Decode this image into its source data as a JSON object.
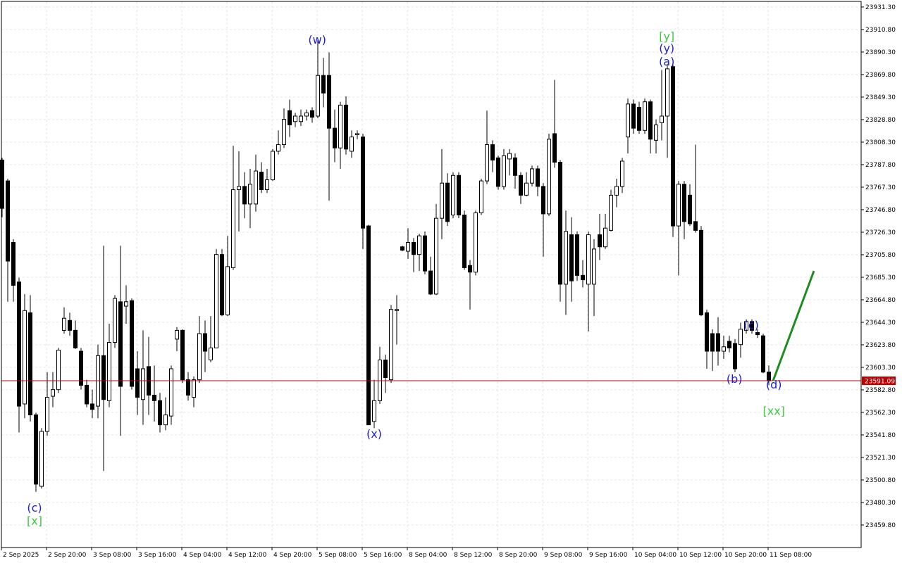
{
  "chart_data": {
    "type": "candlestick",
    "categories": [
      "2 Sep 2025",
      null,
      null,
      null,
      null,
      null,
      null,
      null,
      "2 Sep 20:00",
      null,
      null,
      null,
      null,
      null,
      null,
      null,
      "3 Sep 08:00",
      null,
      null,
      null,
      null,
      null,
      null,
      null,
      "3 Sep 16:00",
      null,
      null,
      null,
      null,
      null,
      null,
      null,
      "4 Sep 04:00",
      null,
      null,
      null,
      null,
      null,
      null,
      null,
      "4 Sep 12:00",
      null,
      null,
      null,
      null,
      null,
      null,
      null,
      "4 Sep 20:00",
      null,
      null,
      null,
      null,
      null,
      null,
      null,
      "5 Sep 08:00",
      null,
      null,
      null,
      null,
      null,
      null,
      null,
      "5 Sep 16:00",
      null,
      null,
      null,
      null,
      null,
      null,
      null,
      "8 Sep 04:00",
      null,
      null,
      null,
      null,
      null,
      null,
      null,
      "8 Sep 12:00",
      null,
      null,
      null,
      null,
      null,
      null,
      null,
      "8 Sep 20:00",
      null,
      null,
      null,
      null,
      null,
      null,
      null,
      "9 Sep 08:00",
      null,
      null,
      null,
      null,
      null,
      null,
      null,
      "9 Sep 16:00",
      null,
      null,
      null,
      null,
      null,
      null,
      null,
      "10 Sep 04:00",
      null,
      null,
      null,
      null,
      null,
      null,
      null,
      "10 Sep 12:00",
      null,
      null,
      null,
      null,
      null,
      null,
      null,
      "10 Sep 20:00",
      null,
      null,
      null,
      null,
      null,
      null,
      null,
      "11 Sep 08:00"
    ],
    "open": [
      23792,
      23773,
      23717,
      23681,
      23570,
      23653,
      23560,
      23495,
      23545,
      23577,
      23583,
      23637,
      23646,
      23637,
      23618,
      23587,
      23570,
      23568,
      23614,
      23573,
      23626,
      23663,
      23659,
      23664,
      23602,
      23574,
      23604,
      23578,
      23573,
      23551,
      23559,
      23629,
      23637,
      23592,
      23576,
      23592,
      23634,
      23610,
      23621,
      23706,
      23651,
      23694,
      23765,
      23768,
      23752,
      23752,
      23781,
      23765,
      23774,
      23800,
      23806,
      23837,
      23827,
      23827,
      23832,
      23837,
      23832,
      23869,
      23869,
      23821,
      23803,
      23842,
      23800,
      23815,
      23813,
      23732,
      23554,
      23573,
      23610,
      23592,
      23655,
      23713,
      23709,
      23717,
      23706,
      23723,
      23691,
      23670,
      23739,
      23771,
      23742,
      23778,
      23742,
      23696,
      23690,
      23744,
      23773,
      23806,
      23794,
      23768,
      23793,
      23794,
      23778,
      23760,
      23771,
      23784,
      23768,
      23743,
      23816,
      23790,
      23679,
      23724,
      23724,
      23687,
      23679,
      23679,
      23724,
      23713,
      23728,
      23760,
      23768,
      23813,
      23843,
      23840,
      23819,
      23845,
      23810,
      23826,
      23832,
      23877,
      23732,
      23770,
      23760,
      23736,
      23728,
      23653,
      23634,
      23634,
      23618,
      23627,
      23625,
      23624,
      23637,
      23645,
      23635,
      23632,
      23599
    ],
    "high": [
      23794,
      23775,
      23720,
      23685,
      23670,
      23669,
      23562,
      23548,
      23599,
      23599,
      23621,
      23658,
      23653,
      23646,
      23621,
      23592,
      23583,
      23624,
      23714,
      23643,
      23669,
      23714,
      23678,
      23666,
      23618,
      23637,
      23631,
      23605,
      23580,
      23576,
      23605,
      23640,
      23638,
      23599,
      23595,
      23650,
      23646,
      23650,
      23711,
      23711,
      23723,
      23805,
      23800,
      23781,
      23784,
      23797,
      23790,
      23784,
      23802,
      23819,
      23839,
      23847,
      23835,
      23838,
      23838,
      23840,
      23901,
      23885,
      23890,
      23838,
      23845,
      23850,
      23819,
      23819,
      23816,
      23733,
      23592,
      23622,
      23615,
      23660,
      23669,
      23714,
      23730,
      23721,
      23725,
      23727,
      23704,
      23752,
      23802,
      23780,
      23781,
      23781,
      23746,
      23701,
      23746,
      23775,
      23837,
      23810,
      23796,
      23802,
      23802,
      23798,
      23781,
      23781,
      23787,
      23787,
      23771,
      23816,
      23865,
      23792,
      23746,
      23740,
      23727,
      23701,
      23727,
      23720,
      23743,
      23743,
      23765,
      23775,
      23794,
      23848,
      23847,
      23845,
      23848,
      23847,
      23829,
      23874,
      23879,
      23879,
      23773,
      23773,
      23770,
      23806,
      23732,
      23656,
      23638,
      23649,
      23632,
      23632,
      23629,
      23644,
      23647,
      23647,
      23638,
      23634,
      23605
    ],
    "low": [
      23740,
      23663,
      23663,
      23544,
      23557,
      23554,
      23490,
      23493,
      23541,
      23567,
      23580,
      23634,
      23632,
      23620,
      23583,
      23567,
      23557,
      23557,
      23509,
      23567,
      23621,
      23541,
      23643,
      23583,
      23560,
      23551,
      23560,
      23554,
      23544,
      23546,
      23551,
      23618,
      23589,
      23573,
      23567,
      23589,
      23599,
      23608,
      23621,
      23650,
      23650,
      23692,
      23727,
      23739,
      23730,
      23745,
      23762,
      23762,
      23773,
      23797,
      23803,
      23813,
      23822,
      23823,
      23828,
      23826,
      23830,
      23840,
      23755,
      23790,
      23784,
      23797,
      23794,
      23811,
      23711,
      23551,
      23548,
      23570,
      23580,
      23589,
      23624,
      23709,
      23702,
      23690,
      23691,
      23688,
      23669,
      23669,
      23720,
      23732,
      23739,
      23739,
      23692,
      23656,
      23687,
      23742,
      23770,
      23781,
      23765,
      23765,
      23778,
      23766,
      23752,
      23759,
      23768,
      23759,
      23704,
      23741,
      23785,
      23663,
      23651,
      23663,
      23682,
      23676,
      23636,
      23650,
      23701,
      23711,
      23727,
      23749,
      23762,
      23798,
      23816,
      23816,
      23816,
      23798,
      23798,
      23810,
      23794,
      23722,
      23687,
      23720,
      23732,
      23726,
      23650,
      23602,
      23600,
      23605,
      23611,
      23617,
      23599,
      23612,
      23634,
      23634,
      23630,
      23598,
      23587
    ],
    "close": [
      23748,
      23700,
      23678,
      23568,
      23655,
      23560,
      23497,
      23545,
      23576,
      23583,
      23619,
      23648,
      23637,
      23621,
      23587,
      23570,
      23565,
      23614,
      23574,
      23626,
      23666,
      23586,
      23663,
      23586,
      23576,
      23602,
      23578,
      23573,
      23551,
      23560,
      23602,
      23637,
      23592,
      23578,
      23592,
      23634,
      23618,
      23621,
      23706,
      23651,
      23695,
      23765,
      23768,
      23752,
      23770,
      23782,
      23765,
      23774,
      23800,
      23806,
      23829,
      23824,
      23832,
      23832,
      23835,
      23831,
      23869,
      23853,
      23821,
      23803,
      23842,
      23802,
      23813,
      23816,
      23730,
      23551,
      23573,
      23610,
      23594,
      23656,
      23656,
      23710,
      23717,
      23706,
      23723,
      23691,
      23670,
      23739,
      23771,
      23736,
      23778,
      23742,
      23694,
      23690,
      23744,
      23773,
      23806,
      23792,
      23768,
      23796,
      23798,
      23778,
      23760,
      23771,
      23784,
      23768,
      23743,
      23811,
      23790,
      23679,
      23727,
      23682,
      23687,
      23683,
      23724,
      23711,
      23713,
      23730,
      23760,
      23768,
      23791,
      23843,
      23821,
      23819,
      23845,
      23811,
      23824,
      23832,
      23875,
      23732,
      23770,
      23736,
      23734,
      23728,
      23651,
      23618,
      23618,
      23618,
      23622,
      23621,
      23602,
      23638,
      23645,
      23637,
      23633,
      23599,
      23591.09
    ],
    "up_color": "#ffffff",
    "down_color": "#000000",
    "ylim": [
      23439.3,
      23936.4
    ],
    "yticks": [
      {
        "value": 23931.3,
        "label": "23931.30"
      },
      {
        "value": 23910.8,
        "label": "23910.80"
      },
      {
        "value": 23890.3,
        "label": "23890.30"
      },
      {
        "value": 23869.8,
        "label": "23869.80"
      },
      {
        "value": 23849.3,
        "label": "23849.30"
      },
      {
        "value": 23828.8,
        "label": "23828.80"
      },
      {
        "value": 23808.3,
        "label": "23808.30"
      },
      {
        "value": 23787.8,
        "label": "23787.80"
      },
      {
        "value": 23767.3,
        "label": "23767.30"
      },
      {
        "value": 23746.8,
        "label": "23746.80"
      },
      {
        "value": 23726.3,
        "label": "23726.30"
      },
      {
        "value": 23705.8,
        "label": "23705.80"
      },
      {
        "value": 23685.3,
        "label": "23685.30"
      },
      {
        "value": 23664.8,
        "label": "23664.80"
      },
      {
        "value": 23644.3,
        "label": "23644.30"
      },
      {
        "value": 23623.8,
        "label": "23623.80"
      },
      {
        "value": 23603.3,
        "label": "23603.30"
      },
      {
        "value": 23582.8,
        "label": "23582.80"
      },
      {
        "value": 23562.3,
        "label": "23562.30"
      },
      {
        "value": 23541.8,
        "label": "23541.80"
      },
      {
        "value": 23521.3,
        "label": "23521.30"
      },
      {
        "value": 23500.8,
        "label": "23500.80"
      },
      {
        "value": 23480.3,
        "label": "23480.30"
      },
      {
        "value": 23459.8,
        "label": "23459.80"
      }
    ],
    "grid": true,
    "current_price": 23591.09,
    "current_price_color": "#c00000",
    "projection": {
      "x": [
        136.75,
        144
      ],
      "y": [
        23591,
        23691
      ],
      "color": "#1e8c1e"
    },
    "annotations": [
      {
        "text": "(w)",
        "color": "#2020d0",
        "x": 55.9,
        "y": 23901
      },
      {
        "text": "(x)",
        "color": "#2020d0",
        "x": 66,
        "y": 23542
      },
      {
        "text": "(c)",
        "color": "#2020d0",
        "x": 5.75,
        "y": 23475
      },
      {
        "text": "[x]",
        "color": "#40c840",
        "x": 5.75,
        "y": 23463
      },
      {
        "text": "[y]",
        "color": "#40c840",
        "x": 117.9,
        "y": 23904
      },
      {
        "text": "(y)",
        "color": "#2020d0",
        "x": 117.9,
        "y": 23893
      },
      {
        "text": "(a)",
        "color": "#2020d0",
        "x": 117.9,
        "y": 23881
      },
      {
        "text": "(b)",
        "color": "#2020d0",
        "x": 129.9,
        "y": 23592
      },
      {
        "text": "(c)",
        "color": "#2020d0",
        "x": 132.9,
        "y": 23641
      },
      {
        "text": "(d)",
        "color": "#2020d0",
        "x": 136.9,
        "y": 23587
      },
      {
        "text": "[xx]",
        "color": "#40c840",
        "x": 136.9,
        "y": 23563
      }
    ]
  }
}
